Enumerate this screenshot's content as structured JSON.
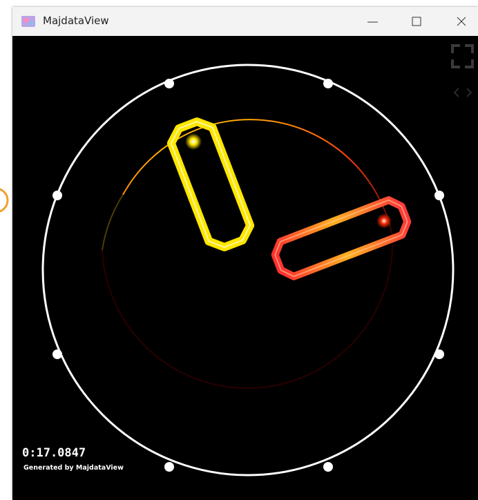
{
  "window": {
    "title": "MajdataView"
  },
  "overlay": {
    "timer": "0:17.0847",
    "credit": "Generated by MajdataView"
  }
}
